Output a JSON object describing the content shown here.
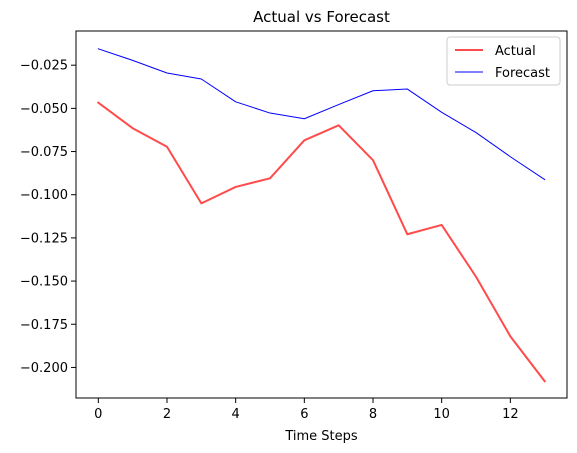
{
  "chart_data": {
    "type": "line",
    "title": "Actual vs Forecast",
    "xlabel": "Time Steps",
    "ylabel": "",
    "x": [
      0,
      1,
      2,
      3,
      4,
      5,
      6,
      7,
      8,
      9,
      10,
      11,
      12,
      13
    ],
    "xticks": [
      0,
      2,
      4,
      6,
      8,
      10,
      12
    ],
    "yticks": [
      -0.2,
      -0.175,
      -0.15,
      -0.125,
      -0.1,
      -0.075,
      -0.05,
      -0.025
    ],
    "ytick_labels": [
      "−0.200",
      "−0.175",
      "−0.150",
      "−0.125",
      "−0.100",
      "−0.075",
      "−0.050",
      "−0.025"
    ],
    "xlim": [
      -0.65,
      13.65
    ],
    "ylim": [
      -0.2177,
      -0.0052
    ],
    "grid": false,
    "legend_position": "upper right",
    "series": [
      {
        "name": "Actual",
        "color": "#ff4b4b",
        "values": [
          -0.0467,
          -0.0615,
          -0.0722,
          -0.105,
          -0.0955,
          -0.0905,
          -0.0685,
          -0.0598,
          -0.08,
          -0.1229,
          -0.1175,
          -0.1475,
          -0.182,
          -0.208
        ]
      },
      {
        "name": "Forecast",
        "color": "#0000ff",
        "values": [
          -0.0155,
          -0.0222,
          -0.0295,
          -0.033,
          -0.0462,
          -0.0527,
          -0.056,
          -0.0478,
          -0.0398,
          -0.0388,
          -0.0523,
          -0.064,
          -0.078,
          -0.0912
        ]
      }
    ]
  }
}
